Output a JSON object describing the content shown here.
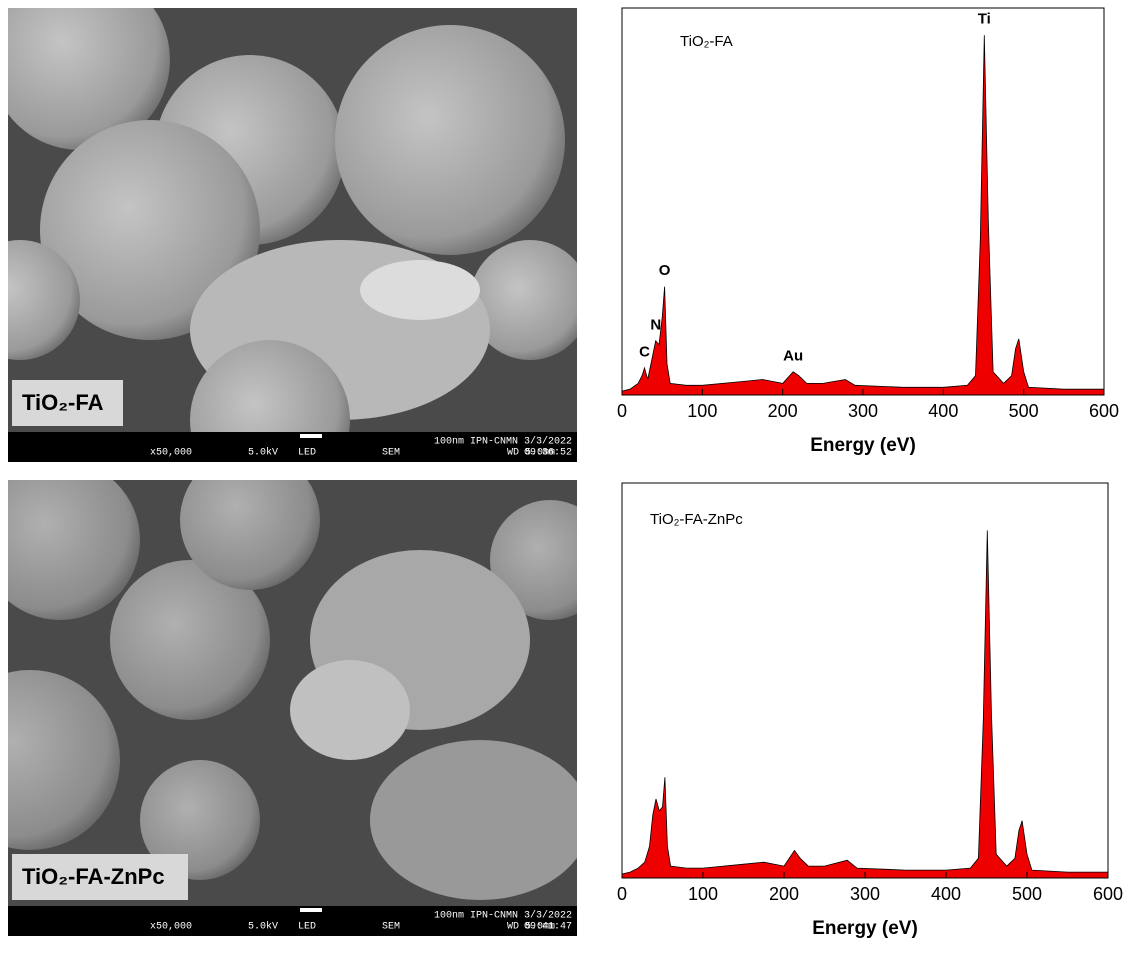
{
  "images": [
    {
      "label": "TiO₂-FA",
      "info": [
        "x50,000",
        "5.0kV",
        "LED",
        "SEM",
        "100nm IPN-CNMN 3/3/2022",
        "WD 5.0mm",
        "09:36:52"
      ]
    },
    {
      "label": "TiO₂-FA-ZnPc",
      "info": [
        "x50,000",
        "5.0kV",
        "LED",
        "SEM",
        "100nm IPN-CNMN 3/3/2022",
        "WD 5.0mm",
        "09:41:47"
      ]
    }
  ],
  "chart_data": [
    {
      "type": "area",
      "title": "TiO₂-FA",
      "x_label": "Energy (eV)",
      "color": "#ee0000",
      "x": [
        0,
        10,
        20,
        25,
        28,
        32,
        38,
        42,
        46,
        50,
        53,
        56,
        60,
        80,
        100,
        150,
        175,
        200,
        213,
        220,
        230,
        250,
        278,
        290,
        350,
        400,
        430,
        440,
        446,
        451,
        456,
        462,
        475,
        485,
        490,
        494,
        500,
        506,
        550,
        600
      ],
      "values": [
        1,
        1.5,
        3,
        5,
        7,
        4,
        10,
        14,
        13,
        20,
        28,
        8,
        3,
        2.5,
        2.5,
        3.5,
        4,
        3,
        6,
        5,
        3,
        3,
        4,
        2.5,
        2,
        2,
        2.5,
        5,
        40,
        93,
        45,
        6,
        3,
        5,
        12,
        14.5,
        6,
        2,
        1.5,
        1.5
      ],
      "annotations": [
        {
          "text": "C",
          "x": 28,
          "y": 11
        },
        {
          "text": "N",
          "x": 42,
          "y": 18
        },
        {
          "text": "O",
          "x": 53,
          "y": 32
        },
        {
          "text": "Au",
          "x": 213,
          "y": 10
        },
        {
          "text": "Ti",
          "x": 451,
          "y": 97
        }
      ],
      "xlim": [
        0,
        600
      ],
      "xticks": [
        0,
        100,
        200,
        300,
        400,
        500,
        600
      ],
      "ylim": [
        0,
        100
      ]
    },
    {
      "type": "area",
      "title": "TiO₂-FA-ZnPc",
      "x_label": "Energy (eV)",
      "color": "#ee0000",
      "x": [
        0,
        10,
        20,
        28,
        34,
        38,
        42,
        46,
        50,
        53,
        56,
        60,
        80,
        100,
        150,
        175,
        200,
        213,
        220,
        230,
        250,
        278,
        290,
        350,
        400,
        430,
        440,
        446,
        451,
        456,
        462,
        475,
        485,
        490,
        494,
        500,
        506,
        550,
        600
      ],
      "values": [
        1,
        1.5,
        2.5,
        4,
        8,
        16,
        20,
        17,
        18,
        25.5,
        8,
        3,
        2.5,
        2.5,
        3.5,
        4,
        3,
        7,
        5,
        3,
        3,
        4.5,
        2.5,
        2,
        2,
        2.5,
        5,
        40,
        88,
        42,
        6,
        3,
        5,
        12,
        14.5,
        6,
        2,
        1.5,
        1.5
      ],
      "annotations": [],
      "xlim": [
        0,
        600
      ],
      "xticks": [
        0,
        100,
        200,
        300,
        400,
        500,
        600
      ],
      "ylim": [
        0,
        100
      ]
    }
  ]
}
